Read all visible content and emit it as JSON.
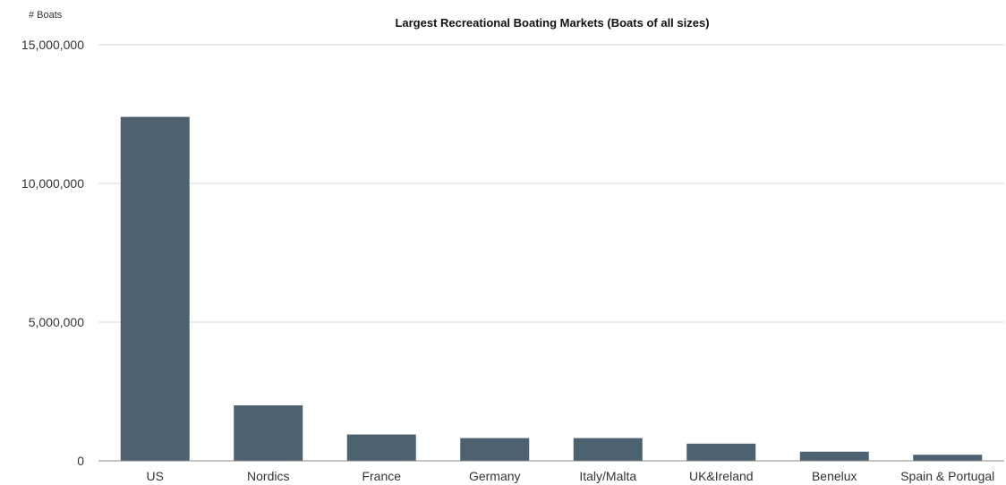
{
  "chart_data": {
    "type": "bar",
    "title": "Largest Recreational Boating Markets (Boats of all sizes)",
    "ylabel": "# Boats",
    "xlabel": "",
    "categories": [
      "US",
      "Nordics",
      "France",
      "Germany",
      "Italy/Malta",
      "UK&Ireland",
      "Benelux",
      "Spain & Portugal"
    ],
    "values": [
      12400000,
      2000000,
      950000,
      820000,
      820000,
      620000,
      330000,
      220000
    ],
    "ylim": [
      0,
      15000000
    ],
    "yticks": [
      0,
      5000000,
      10000000,
      15000000
    ],
    "ytick_labels": [
      "0",
      "5,000,000",
      "10,000,000",
      "15,000,000"
    ],
    "grid": true,
    "legend": "none",
    "bar_color": "#4d6270",
    "grid_color": "#d9d9d9",
    "axis_color": "#888888"
  }
}
